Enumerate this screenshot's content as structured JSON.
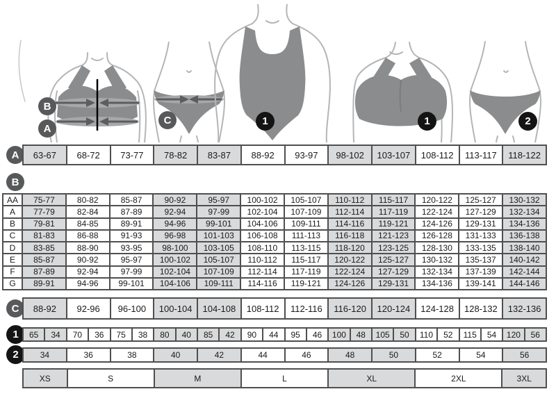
{
  "colors": {
    "cell_shaded": "#d9dadb",
    "cell_border": "#4f4f50",
    "circle_gray": "#58595b",
    "circle_black": "#141414",
    "garment_gray": "#8b8c8e",
    "body_outline": "#b4b5b7"
  },
  "figures": {
    "bra_measure": {
      "label_upper": "B",
      "label_lower": "A"
    },
    "panty_measure": {
      "label": "C"
    },
    "bodysuit": {
      "label": "1"
    },
    "bra": {
      "label": "1"
    },
    "panty": {
      "label": "2"
    }
  },
  "shading": {
    "columns": [
      1,
      0,
      0,
      1,
      1,
      0,
      0,
      1,
      1,
      0,
      0,
      1
    ],
    "sizes": [
      1,
      0,
      1,
      0,
      1,
      0,
      1
    ]
  },
  "tables": {
    "row_a": {
      "label": "A",
      "cells": [
        "63-67",
        "68-72",
        "73-77",
        "78-82",
        "83-87",
        "88-92",
        "93-97",
        "98-102",
        "103-107",
        "108-112",
        "113-117",
        "118-122"
      ]
    },
    "section_b": {
      "label": "B",
      "rows": [
        {
          "cup": "AA",
          "cells": [
            "75-77",
            "80-82",
            "85-87",
            "90-92",
            "95-97",
            "100-102",
            "105-107",
            "110-112",
            "115-117",
            "120-122",
            "125-127",
            "130-132"
          ]
        },
        {
          "cup": "A",
          "cells": [
            "77-79",
            "82-84",
            "87-89",
            "92-94",
            "97-99",
            "102-104",
            "107-109",
            "112-114",
            "117-119",
            "122-124",
            "127-129",
            "132-134"
          ]
        },
        {
          "cup": "B",
          "cells": [
            "79-81",
            "84-85",
            "89-91",
            "94-96",
            "99-101",
            "104-106",
            "109-111",
            "114-116",
            "119-121",
            "124-126",
            "129-131",
            "134-136"
          ]
        },
        {
          "cup": "C",
          "cells": [
            "81-83",
            "86-88",
            "91-93",
            "96-98",
            "101-103",
            "106-108",
            "111-113",
            "116-118",
            "121-123",
            "126-128",
            "131-133",
            "136-138"
          ]
        },
        {
          "cup": "D",
          "cells": [
            "83-85",
            "88-90",
            "93-95",
            "98-100",
            "103-105",
            "108-110",
            "113-115",
            "118-120",
            "123-125",
            "128-130",
            "133-135",
            "138-140"
          ]
        },
        {
          "cup": "E",
          "cells": [
            "85-87",
            "90-92",
            "95-97",
            "100-102",
            "105-107",
            "110-112",
            "115-117",
            "120-122",
            "125-127",
            "130-132",
            "135-137",
            "140-142"
          ]
        },
        {
          "cup": "F",
          "cells": [
            "87-89",
            "92-94",
            "97-99",
            "102-104",
            "107-109",
            "112-114",
            "117-119",
            "122-124",
            "127-129",
            "132-134",
            "137-139",
            "142-144"
          ]
        },
        {
          "cup": "G",
          "cells": [
            "89-91",
            "94-96",
            "99-101",
            "104-106",
            "109-111",
            "114-116",
            "119-121",
            "124-126",
            "129-131",
            "134-136",
            "139-141",
            "144-146"
          ]
        }
      ]
    },
    "row_c": {
      "label": "C",
      "cells": [
        "88-92",
        "92-96",
        "96-100",
        "100-104",
        "104-108",
        "108-112",
        "112-116",
        "116-120",
        "120-124",
        "124-128",
        "128-132",
        "132-136"
      ]
    },
    "row_1": {
      "label": "1",
      "cells": [
        "65",
        "34",
        "70",
        "36",
        "75",
        "38",
        "80",
        "40",
        "85",
        "42",
        "90",
        "44",
        "95",
        "46",
        "100",
        "48",
        "105",
        "50",
        "110",
        "52",
        "115",
        "54",
        "120",
        "56"
      ]
    },
    "row_2": {
      "label": "2",
      "cells": [
        "34",
        "36",
        "38",
        "40",
        "42",
        "44",
        "46",
        "48",
        "50",
        "52",
        "54",
        "56"
      ]
    },
    "row_sizes": {
      "cells": [
        {
          "label": "XS",
          "span": 1
        },
        {
          "label": "S",
          "span": 2
        },
        {
          "label": "M",
          "span": 2
        },
        {
          "label": "L",
          "span": 2
        },
        {
          "label": "XL",
          "span": 2
        },
        {
          "label": "2XL",
          "span": 2
        },
        {
          "label": "3XL",
          "span": 1
        }
      ]
    }
  }
}
